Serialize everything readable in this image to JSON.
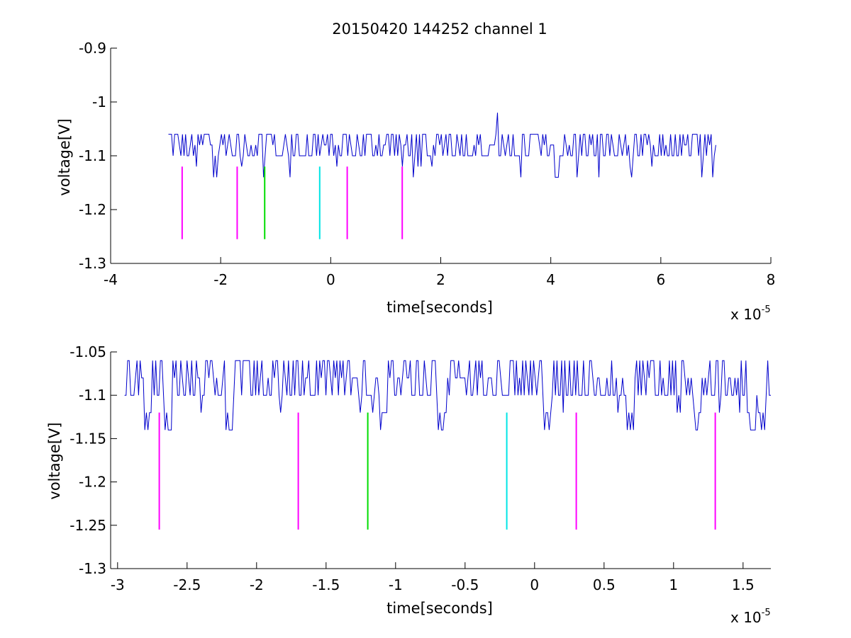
{
  "chart_data": [
    {
      "type": "line",
      "title": "20150420 144252 channel 1",
      "xlabel": "time[seconds]",
      "ylabel": "voltage[V]",
      "x_multiplier": {
        "base": "x 10",
        "exponent": "-5"
      },
      "xlim": [
        -4,
        8
      ],
      "ylim": [
        -1.3,
        -0.9
      ],
      "x_ticks": [
        -4,
        -2,
        0,
        2,
        4,
        6,
        8
      ],
      "x_tick_labels": [
        "-4",
        "-2",
        "0",
        "2",
        "4",
        "6",
        "8"
      ],
      "y_ticks": [
        -1.3,
        -1.2,
        -1.1,
        -1.0,
        -0.9
      ],
      "y_tick_labels": [
        "-1.3",
        "-1.2",
        "-1.1",
        "-1",
        "-0.9"
      ],
      "grid": false,
      "series": [
        {
          "color": "#0000cc",
          "x_range": [
            -2.95,
            7.0
          ],
          "levels": [
            -1.14,
            -1.12,
            -1.1,
            -1.08,
            -1.06
          ],
          "spike": {
            "x": 3.02,
            "y": -1.02
          },
          "description_values": "noisy trace fluctuating between -1.14 and -1.06 around -1.1"
        }
      ],
      "markers": [
        {
          "x": -2.7,
          "y_top": -1.12,
          "y_bottom": -1.255,
          "color": "#ff00ff"
        },
        {
          "x": -1.7,
          "y_top": -1.12,
          "y_bottom": -1.255,
          "color": "#ff00ff"
        },
        {
          "x": -1.2,
          "y_top": -1.12,
          "y_bottom": -1.255,
          "color": "#00dd00"
        },
        {
          "x": -0.2,
          "y_top": -1.12,
          "y_bottom": -1.255,
          "color": "#00e5e5"
        },
        {
          "x": 0.3,
          "y_top": -1.12,
          "y_bottom": -1.255,
          "color": "#ff00ff"
        },
        {
          "x": 1.3,
          "y_top": -1.12,
          "y_bottom": -1.255,
          "color": "#ff00ff"
        }
      ]
    },
    {
      "type": "line",
      "title": "",
      "xlabel": "time[seconds]",
      "ylabel": "voltage[V]",
      "x_multiplier": {
        "base": "x 10",
        "exponent": "-5"
      },
      "xlim": [
        -3.05,
        1.7
      ],
      "ylim": [
        -1.3,
        -1.05
      ],
      "x_ticks": [
        -3,
        -2.5,
        -2,
        -1.5,
        -1,
        -0.5,
        0,
        0.5,
        1,
        1.5
      ],
      "x_tick_labels": [
        "-3",
        "-2.5",
        "-2",
        "-1.5",
        "-1",
        "-0.5",
        "0",
        "0.5",
        "1",
        "1.5"
      ],
      "y_ticks": [
        -1.3,
        -1.25,
        -1.2,
        -1.15,
        -1.1,
        -1.05
      ],
      "y_tick_labels": [
        "-1.3",
        "-1.25",
        "-1.2",
        "-1.15",
        "-1.1",
        "-1.05"
      ],
      "grid": false,
      "series": [
        {
          "color": "#0000cc",
          "x_range": [
            -2.95,
            1.7
          ],
          "levels": [
            -1.14,
            -1.12,
            -1.1,
            -1.08,
            -1.06
          ],
          "dips": [
            -2.78,
            -2.63,
            -2.2,
            -1.08,
            -0.67,
            0.09,
            0.69,
            1.17,
            1.57,
            1.63
          ],
          "description_values": "noisy trace fluctuating between -1.14 and -1.06 around -1.1"
        }
      ],
      "markers": [
        {
          "x": -2.7,
          "y_top": -1.12,
          "y_bottom": -1.255,
          "color": "#ff00ff"
        },
        {
          "x": -1.7,
          "y_top": -1.12,
          "y_bottom": -1.255,
          "color": "#ff00ff"
        },
        {
          "x": -1.2,
          "y_top": -1.12,
          "y_bottom": -1.255,
          "color": "#00dd00"
        },
        {
          "x": -0.2,
          "y_top": -1.12,
          "y_bottom": -1.255,
          "color": "#00e5e5"
        },
        {
          "x": 0.3,
          "y_top": -1.12,
          "y_bottom": -1.255,
          "color": "#ff00ff"
        },
        {
          "x": 1.3,
          "y_top": -1.12,
          "y_bottom": -1.255,
          "color": "#ff00ff"
        }
      ]
    }
  ]
}
